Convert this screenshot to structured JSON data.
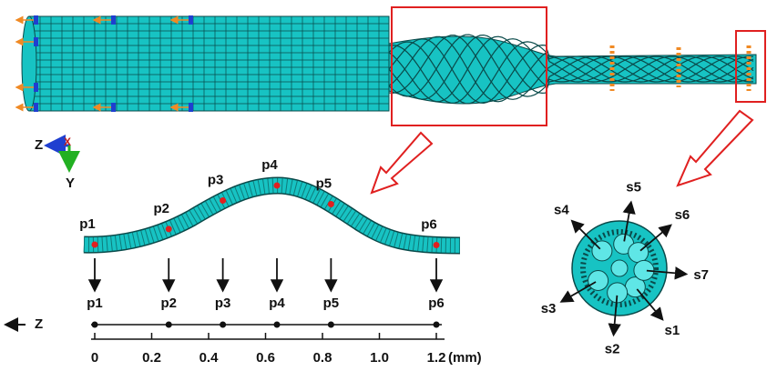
{
  "triad": {
    "z": "Z",
    "x": "X",
    "y": "Y"
  },
  "points": [
    {
      "label": "p1",
      "x": 0
    },
    {
      "label": "p2",
      "x": 0.26
    },
    {
      "label": "p3",
      "x": 0.45
    },
    {
      "label": "p4",
      "x": 0.64
    },
    {
      "label": "p5",
      "x": 0.83
    },
    {
      "label": "p6",
      "x": 1.2
    }
  ],
  "axis": {
    "direction_label": "Z",
    "unit": "(mm)",
    "xlim": [
      0,
      1.2
    ],
    "ticks": [
      0,
      0.2,
      0.4,
      0.6,
      0.8,
      {
        "value": 1,
        "label": "1.0"
      },
      1.2
    ]
  },
  "sections": [
    "s1",
    "s2",
    "s3",
    "s4",
    "s5",
    "s6",
    "s7"
  ]
}
